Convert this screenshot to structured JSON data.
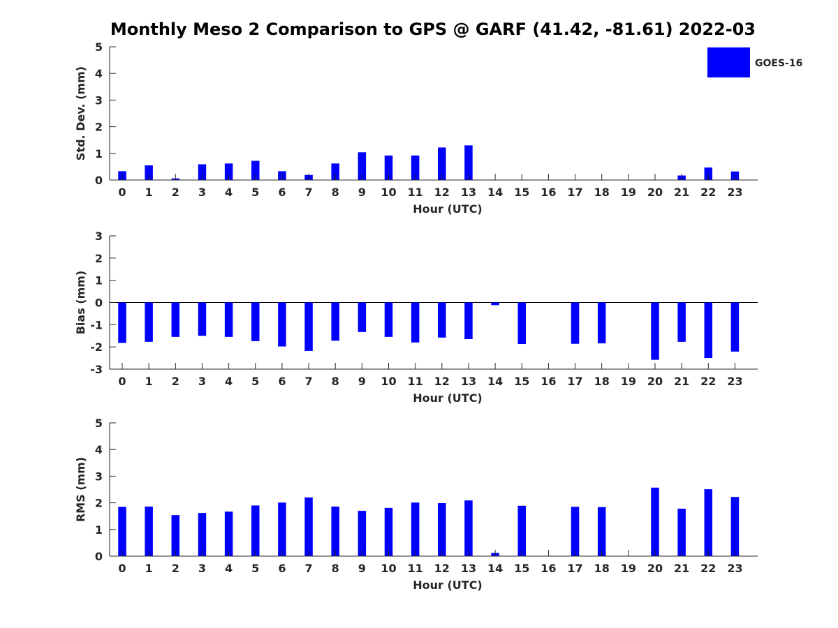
{
  "title": "Monthly Meso 2 Comparison to GPS @ GARF (41.42, -81.61) 2022-03",
  "legend": {
    "label": "GOES-16",
    "color": "#0000ff",
    "position": "top-right"
  },
  "chart_data": [
    {
      "type": "bar",
      "ylabel": "Std. Dev. (mm)",
      "xlabel": "Hour (UTC)",
      "ylim": [
        0,
        5
      ],
      "yticks": [
        0,
        1,
        2,
        3,
        4,
        5
      ],
      "categories": [
        "0",
        "1",
        "2",
        "3",
        "4",
        "5",
        "6",
        "7",
        "8",
        "9",
        "10",
        "11",
        "12",
        "13",
        "14",
        "15",
        "16",
        "17",
        "18",
        "19",
        "20",
        "21",
        "22",
        "23"
      ],
      "series": [
        {
          "name": "GOES-16",
          "color": "#0000ff",
          "values": [
            0.33,
            0.55,
            0.06,
            0.59,
            0.62,
            0.72,
            0.33,
            0.19,
            0.62,
            1.04,
            0.92,
            0.92,
            1.22,
            1.3,
            null,
            null,
            null,
            null,
            null,
            null,
            null,
            0.17,
            0.47,
            0.32
          ]
        }
      ]
    },
    {
      "type": "bar",
      "ylabel": "Bias (mm)",
      "xlabel": "Hour (UTC)",
      "ylim": [
        -3,
        3
      ],
      "yticks": [
        -3,
        -2,
        -1,
        0,
        1,
        2,
        3
      ],
      "categories": [
        "0",
        "1",
        "2",
        "3",
        "4",
        "5",
        "6",
        "7",
        "8",
        "9",
        "10",
        "11",
        "12",
        "13",
        "14",
        "15",
        "16",
        "17",
        "18",
        "19",
        "20",
        "21",
        "22",
        "23"
      ],
      "series": [
        {
          "name": "GOES-16",
          "color": "#0000ff",
          "values": [
            -1.82,
            -1.77,
            -1.55,
            -1.5,
            -1.55,
            -1.74,
            -1.98,
            -2.18,
            -1.72,
            -1.33,
            -1.55,
            -1.8,
            -1.58,
            -1.65,
            -0.12,
            -1.87,
            null,
            -1.86,
            -1.84,
            null,
            -2.58,
            -1.77,
            -2.5,
            -2.21
          ]
        }
      ]
    },
    {
      "type": "bar",
      "ylabel": "RMS (mm)",
      "xlabel": "Hour (UTC)",
      "ylim": [
        0,
        5
      ],
      "yticks": [
        0,
        1,
        2,
        3,
        4,
        5
      ],
      "categories": [
        "0",
        "1",
        "2",
        "3",
        "4",
        "5",
        "6",
        "7",
        "8",
        "9",
        "10",
        "11",
        "12",
        "13",
        "14",
        "15",
        "16",
        "17",
        "18",
        "19",
        "20",
        "21",
        "22",
        "23"
      ],
      "series": [
        {
          "name": "GOES-16",
          "color": "#0000ff",
          "values": [
            1.85,
            1.86,
            1.54,
            1.62,
            1.67,
            1.9,
            2.01,
            2.2,
            1.86,
            1.7,
            1.81,
            2.01,
            1.99,
            2.09,
            0.12,
            1.89,
            null,
            1.85,
            1.84,
            null,
            2.57,
            1.78,
            2.51,
            2.22
          ]
        }
      ]
    }
  ]
}
